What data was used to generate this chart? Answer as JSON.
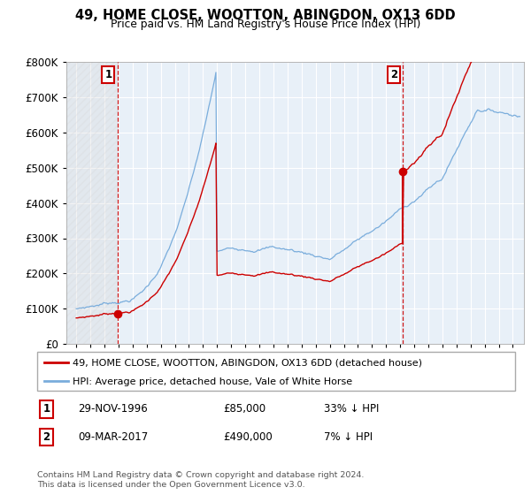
{
  "title": "49, HOME CLOSE, WOOTTON, ABINGDON, OX13 6DD",
  "subtitle": "Price paid vs. HM Land Registry's House Price Index (HPI)",
  "sale1_date": "29-NOV-1996",
  "sale1_price": 85000,
  "sale2_date": "09-MAR-2017",
  "sale2_price": 490000,
  "legend_line1": "49, HOME CLOSE, WOOTTON, ABINGDON, OX13 6DD (detached house)",
  "legend_line2": "HPI: Average price, detached house, Vale of White Horse",
  "footer": "Contains HM Land Registry data © Crown copyright and database right 2024.\nThis data is licensed under the Open Government Licence v3.0.",
  "sale_color": "#cc0000",
  "hpi_color": "#7aaddc",
  "ylim": [
    0,
    800000
  ],
  "yticks": [
    0,
    100000,
    200000,
    300000,
    400000,
    500000,
    600000,
    700000,
    800000
  ],
  "ytick_labels": [
    "£0",
    "£100K",
    "£200K",
    "£300K",
    "£400K",
    "£500K",
    "£600K",
    "£700K",
    "£800K"
  ],
  "sale1_x": 1996.92,
  "sale2_x": 2017.19,
  "xstart": 1994,
  "xend": 2025.5
}
